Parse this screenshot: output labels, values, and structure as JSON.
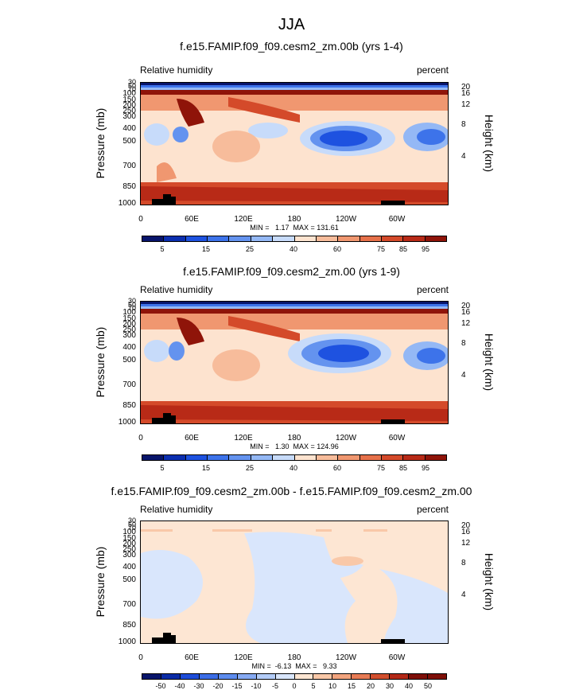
{
  "page_title": "JJA",
  "colors": {
    "rh_palette": [
      "#08156b",
      "#0b2fb0",
      "#1e52e0",
      "#3d73ea",
      "#6493ef",
      "#94b8f5",
      "#c7dbfa",
      "#fde3cf",
      "#f7bc9b",
      "#f09770",
      "#e6714a",
      "#d44a2a",
      "#b82a17",
      "#8f1409"
    ],
    "diff_palette": [
      "#08156b",
      "#0a2ba6",
      "#1d4cd8",
      "#3b6de6",
      "#5d8cee",
      "#86aaf3",
      "#b3ccf8",
      "#d9e6fc",
      "#fde6d3",
      "#f9c8a8",
      "#f2a47e",
      "#e77b55",
      "#d24f2e",
      "#b32817",
      "#7e0f07"
    ]
  },
  "panels": [
    {
      "title": "f.e15.FAMIP.f09_f09.cesm2_zm.00b (yrs 1-4)",
      "left_label": "Relative humidity",
      "right_label": "percent",
      "y_axis_left_title": "Pressure (mb)",
      "y_axis_right_title": "Height (km)",
      "pressure_ticks": [
        "30",
        "50",
        "70",
        "100",
        "150",
        "200",
        "250",
        "300",
        "400",
        "500",
        "700",
        "850",
        "1000"
      ],
      "height_ticks": [
        "20",
        "16",
        "12",
        "8",
        "4"
      ],
      "x_ticks": [
        "0",
        "60E",
        "120E",
        "180",
        "120W",
        "60W"
      ],
      "stats": "MIN =   1.17  MAX = 131.61",
      "colorbar_labels": [
        "5",
        "15",
        "25",
        "40",
        "60",
        "75",
        "85",
        "95"
      ]
    },
    {
      "title": "f.e15.FAMIP.f09_f09.cesm2_zm.00 (yrs 1-9)",
      "left_label": "Relative humidity",
      "right_label": "percent",
      "y_axis_left_title": "Pressure (mb)",
      "y_axis_right_title": "Height (km)",
      "pressure_ticks": [
        "30",
        "50",
        "70",
        "100",
        "150",
        "200",
        "250",
        "300",
        "400",
        "500",
        "700",
        "850",
        "1000"
      ],
      "height_ticks": [
        "20",
        "16",
        "12",
        "8",
        "4"
      ],
      "x_ticks": [
        "0",
        "60E",
        "120E",
        "180",
        "120W",
        "60W"
      ],
      "stats": "MIN =   1.30  MAX = 124.96",
      "colorbar_labels": [
        "5",
        "15",
        "25",
        "40",
        "60",
        "75",
        "85",
        "95"
      ]
    },
    {
      "title": "f.e15.FAMIP.f09_f09.cesm2_zm.00b - f.e15.FAMIP.f09_f09.cesm2_zm.00",
      "left_label": "Relative humidity",
      "right_label": "percent",
      "y_axis_left_title": "Pressure (mb)",
      "y_axis_right_title": "Height (km)",
      "pressure_ticks": [
        "30",
        "50",
        "70",
        "100",
        "150",
        "200",
        "250",
        "300",
        "400",
        "500",
        "700",
        "850",
        "1000"
      ],
      "height_ticks": [
        "20",
        "16",
        "12",
        "8",
        "4"
      ],
      "x_ticks": [
        "0",
        "60E",
        "120E",
        "180",
        "120W",
        "60W"
      ],
      "stats": "MIN =  -6.13  MAX =   9.33",
      "colorbar_labels": [
        "-50",
        "-40",
        "-30",
        "-20",
        "-15",
        "-10",
        "-5",
        "0",
        "5",
        "10",
        "15",
        "20",
        "30",
        "40",
        "50"
      ]
    }
  ],
  "chart_data": [
    {
      "type": "heatmap",
      "title": "f.e15.FAMIP.f09_f09.cesm2_zm.00b (yrs 1-4)",
      "xlabel": "",
      "ylabel": "Pressure (mb)",
      "y2label": "Height (km)",
      "xlim": [
        0,
        360
      ],
      "ylim": [
        1000,
        30
      ],
      "y_scale": "log",
      "contour_levels": [
        5,
        15,
        25,
        40,
        60,
        75,
        85,
        95
      ],
      "min": 1.17,
      "max": 131.61
    },
    {
      "type": "heatmap",
      "title": "f.e15.FAMIP.f09_f09.cesm2_zm.00 (yrs 1-9)",
      "xlabel": "",
      "ylabel": "Pressure (mb)",
      "y2label": "Height (km)",
      "xlim": [
        0,
        360
      ],
      "ylim": [
        1000,
        30
      ],
      "y_scale": "log",
      "contour_levels": [
        5,
        15,
        25,
        40,
        60,
        75,
        85,
        95
      ],
      "min": 1.3,
      "max": 124.96
    },
    {
      "type": "heatmap",
      "title": "f.e15.FAMIP.f09_f09.cesm2_zm.00b - f.e15.FAMIP.f09_f09.cesm2_zm.00",
      "xlabel": "",
      "ylabel": "Pressure (mb)",
      "y2label": "Height (km)",
      "xlim": [
        0,
        360
      ],
      "ylim": [
        1000,
        30
      ],
      "y_scale": "log",
      "contour_levels": [
        -50,
        -40,
        -30,
        -20,
        -15,
        -10,
        -5,
        0,
        5,
        10,
        15,
        20,
        30,
        40,
        50
      ],
      "min": -6.13,
      "max": 9.33
    }
  ]
}
